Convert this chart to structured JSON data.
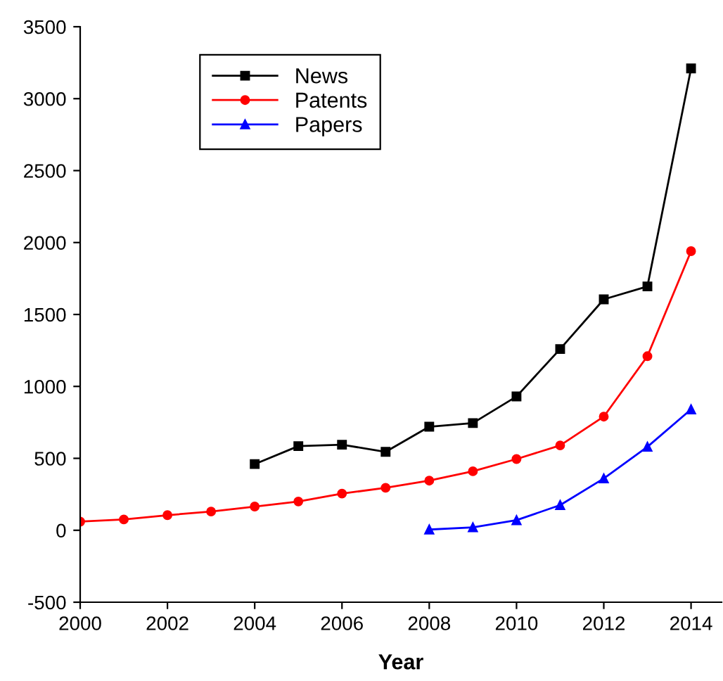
{
  "chart_data": {
    "type": "line",
    "xlabel": "Year",
    "xlim": [
      2000,
      2014.7
    ],
    "xticks": [
      2000,
      2002,
      2004,
      2006,
      2008,
      2010,
      2012,
      2014
    ],
    "ylim": [
      -500,
      3500
    ],
    "yticks": [
      -500,
      0,
      500,
      1000,
      1500,
      2000,
      2500,
      3000,
      3500
    ],
    "grid": false,
    "legend": "top left",
    "series": [
      {
        "name": "News",
        "color": "#000000",
        "marker": "square",
        "x": [
          2004,
          2005,
          2006,
          2007,
          2008,
          2009,
          2010,
          2011,
          2012,
          2013,
          2014
        ],
        "values": [
          460,
          585,
          595,
          545,
          720,
          745,
          930,
          1260,
          1605,
          1695,
          3210
        ]
      },
      {
        "name": "Patents",
        "color": "#ff0000",
        "marker": "circle",
        "x": [
          2000,
          2001,
          2002,
          2003,
          2004,
          2005,
          2006,
          2007,
          2008,
          2009,
          2010,
          2011,
          2012,
          2013,
          2014
        ],
        "values": [
          60,
          75,
          105,
          130,
          165,
          200,
          255,
          295,
          345,
          410,
          495,
          590,
          790,
          1210,
          1940
        ]
      },
      {
        "name": "Papers",
        "color": "#0000ff",
        "marker": "triangle",
        "x": [
          2008,
          2009,
          2010,
          2011,
          2012,
          2013,
          2014
        ],
        "values": [
          5,
          20,
          70,
          175,
          360,
          580,
          840
        ]
      }
    ]
  }
}
